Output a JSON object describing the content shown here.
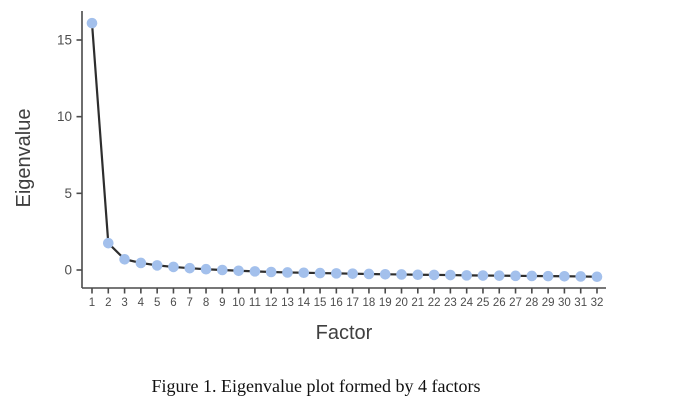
{
  "figure": {
    "caption": "Figure 1. Eigenvalue plot formed by 4 factors"
  },
  "chart_data": {
    "type": "line",
    "title": "",
    "xlabel": "Factor",
    "ylabel": "Eigenvalue",
    "x": [
      1,
      2,
      3,
      4,
      5,
      6,
      7,
      8,
      9,
      10,
      11,
      12,
      13,
      14,
      15,
      16,
      17,
      18,
      19,
      20,
      21,
      22,
      23,
      24,
      25,
      26,
      27,
      28,
      29,
      30,
      31,
      32
    ],
    "values": [
      16.1,
      1.75,
      0.7,
      0.46,
      0.3,
      0.2,
      0.12,
      0.05,
      0.0,
      -0.05,
      -0.09,
      -0.13,
      -0.16,
      -0.18,
      -0.2,
      -0.22,
      -0.24,
      -0.26,
      -0.28,
      -0.29,
      -0.31,
      -0.32,
      -0.33,
      -0.35,
      -0.36,
      -0.37,
      -0.38,
      -0.39,
      -0.4,
      -0.41,
      -0.42,
      -0.44
    ],
    "yticks": [
      0,
      5,
      10,
      15
    ],
    "ylim": [
      -1.2,
      16.9
    ],
    "xlim": [
      0.4,
      32.6
    ],
    "grid": false,
    "legend": false,
    "marker_color": "#a3c0ec",
    "line_color": "#2e2e2e",
    "axis_color": "#4a4a4a",
    "tick_label_color": "#4d4d4d",
    "axis_title_color": "#3f3f3f"
  }
}
